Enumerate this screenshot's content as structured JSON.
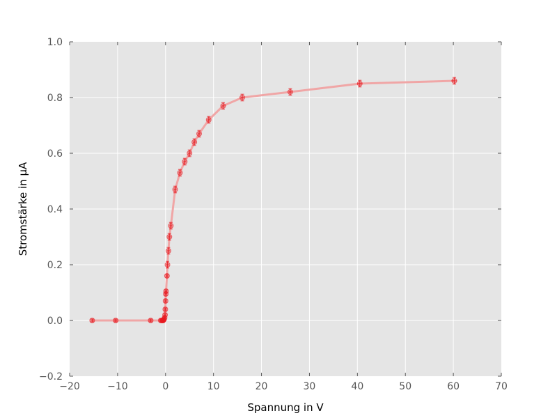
{
  "chart_data": {
    "type": "line",
    "title": "",
    "xlabel": "Spannung in V",
    "ylabel": "Stromstärke in µA",
    "xlim": [
      -20,
      70
    ],
    "ylim": [
      -0.2,
      1.0
    ],
    "xticks": [
      -20,
      -10,
      0,
      10,
      20,
      30,
      40,
      50,
      60,
      70
    ],
    "yticks": [
      -0.2,
      0.0,
      0.2,
      0.4,
      0.6,
      0.8,
      1.0
    ],
    "xtick_labels": [
      "−20",
      "−10",
      "0",
      "10",
      "20",
      "30",
      "40",
      "50",
      "60",
      "70"
    ],
    "ytick_labels": [
      "−0.2",
      "0.0",
      "0.2",
      "0.4",
      "0.6",
      "0.8",
      "1.0"
    ],
    "grid": true,
    "background_color": "#e5e5e5",
    "series_color": "#e8191f",
    "line_color": "#f0a6a6",
    "series": [
      {
        "points": [
          {
            "x": -15.3,
            "y": 0.0,
            "xerr": 0.3,
            "yerr": 0.005
          },
          {
            "x": -10.4,
            "y": 0.0,
            "xerr": 0.3,
            "yerr": 0.005
          },
          {
            "x": -3.1,
            "y": 0.0,
            "xerr": 0.3,
            "yerr": 0.005
          },
          {
            "x": -1.0,
            "y": 0.0,
            "xerr": 0.3,
            "yerr": 0.005
          },
          {
            "x": -0.8,
            "y": 0.0,
            "xerr": 0.3,
            "yerr": 0.005
          },
          {
            "x": -0.6,
            "y": 0.0,
            "xerr": 0.3,
            "yerr": 0.005
          },
          {
            "x": -0.5,
            "y": 0.0,
            "xerr": 0.3,
            "yerr": 0.005
          },
          {
            "x": -0.4,
            "y": 0.002,
            "xerr": 0.3,
            "yerr": 0.005
          },
          {
            "x": -0.3,
            "y": 0.005,
            "xerr": 0.3,
            "yerr": 0.005
          },
          {
            "x": -0.2,
            "y": 0.01,
            "xerr": 0.3,
            "yerr": 0.005
          },
          {
            "x": -0.1,
            "y": 0.02,
            "xerr": 0.3,
            "yerr": 0.005
          },
          {
            "x": -0.05,
            "y": 0.04,
            "xerr": 0.3,
            "yerr": 0.005
          },
          {
            "x": 0.0,
            "y": 0.07,
            "xerr": 0.3,
            "yerr": 0.005
          },
          {
            "x": 0.05,
            "y": 0.095,
            "xerr": 0.3,
            "yerr": 0.005
          },
          {
            "x": 0.1,
            "y": 0.105,
            "xerr": 0.3,
            "yerr": 0.005
          },
          {
            "x": 0.3,
            "y": 0.16,
            "xerr": 0.3,
            "yerr": 0.005
          },
          {
            "x": 0.4,
            "y": 0.2,
            "xerr": 0.3,
            "yerr": 0.012
          },
          {
            "x": 0.6,
            "y": 0.25,
            "xerr": 0.3,
            "yerr": 0.012
          },
          {
            "x": 0.8,
            "y": 0.3,
            "xerr": 0.3,
            "yerr": 0.012
          },
          {
            "x": 1.1,
            "y": 0.34,
            "xerr": 0.3,
            "yerr": 0.012
          },
          {
            "x": 2.0,
            "y": 0.47,
            "xerr": 0.3,
            "yerr": 0.012
          },
          {
            "x": 3.0,
            "y": 0.53,
            "xerr": 0.3,
            "yerr": 0.012
          },
          {
            "x": 4.0,
            "y": 0.57,
            "xerr": 0.3,
            "yerr": 0.012
          },
          {
            "x": 5.0,
            "y": 0.6,
            "xerr": 0.3,
            "yerr": 0.012
          },
          {
            "x": 6.0,
            "y": 0.64,
            "xerr": 0.3,
            "yerr": 0.012
          },
          {
            "x": 7.0,
            "y": 0.67,
            "xerr": 0.3,
            "yerr": 0.012
          },
          {
            "x": 9.0,
            "y": 0.72,
            "xerr": 0.3,
            "yerr": 0.012
          },
          {
            "x": 12.0,
            "y": 0.77,
            "xerr": 0.3,
            "yerr": 0.012
          },
          {
            "x": 16.0,
            "y": 0.8,
            "xerr": 0.3,
            "yerr": 0.012
          },
          {
            "x": 26.0,
            "y": 0.82,
            "xerr": 0.3,
            "yerr": 0.012
          },
          {
            "x": 40.5,
            "y": 0.85,
            "xerr": 0.5,
            "yerr": 0.012
          },
          {
            "x": 60.2,
            "y": 0.86,
            "xerr": 0.6,
            "yerr": 0.012
          }
        ]
      }
    ]
  }
}
